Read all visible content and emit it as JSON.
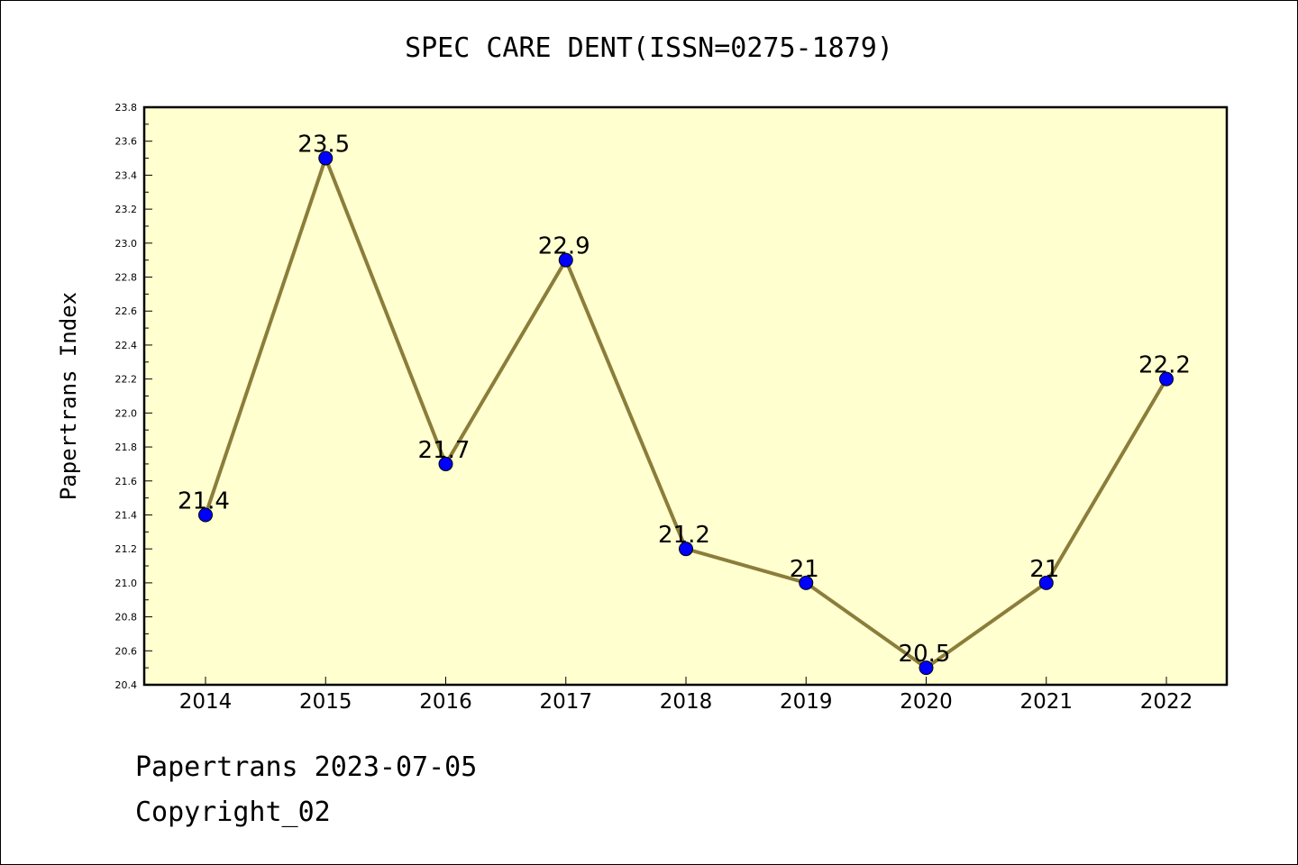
{
  "chart_data": {
    "type": "line",
    "title": "SPEC CARE DENT(ISSN=0275-1879)",
    "ylabel": "Papertrans Index",
    "xlabel": "",
    "x": [
      "2014",
      "2015",
      "2016",
      "2017",
      "2018",
      "2019",
      "2020",
      "2021",
      "2022"
    ],
    "series": [
      {
        "values": [
          21.4,
          23.5,
          21.7,
          22.9,
          21.2,
          21.0,
          20.5,
          21.0,
          22.2
        ],
        "labels": [
          "21.4",
          "23.5",
          "21.7",
          "22.9",
          "21.2",
          "21",
          "20.5",
          "21",
          "22.2"
        ]
      }
    ],
    "ylim": [
      20.4,
      23.8
    ],
    "yticks": [
      "20.4",
      "20.6",
      "20.8",
      "21.0",
      "21.2",
      "21.4",
      "21.6",
      "21.8",
      "22.0",
      "22.2",
      "22.4",
      "22.6",
      "22.8",
      "23.0",
      "23.2",
      "23.4",
      "23.6",
      "23.8"
    ],
    "grid": false,
    "legend": "none"
  },
  "colors": {
    "plot_background": "#FFFFD0",
    "line": "#8B7D3A",
    "marker": "#0000FF",
    "axis": "#000000"
  },
  "footer": {
    "line1": "Papertrans 2023-07-05",
    "line2": "Copyright_02"
  }
}
